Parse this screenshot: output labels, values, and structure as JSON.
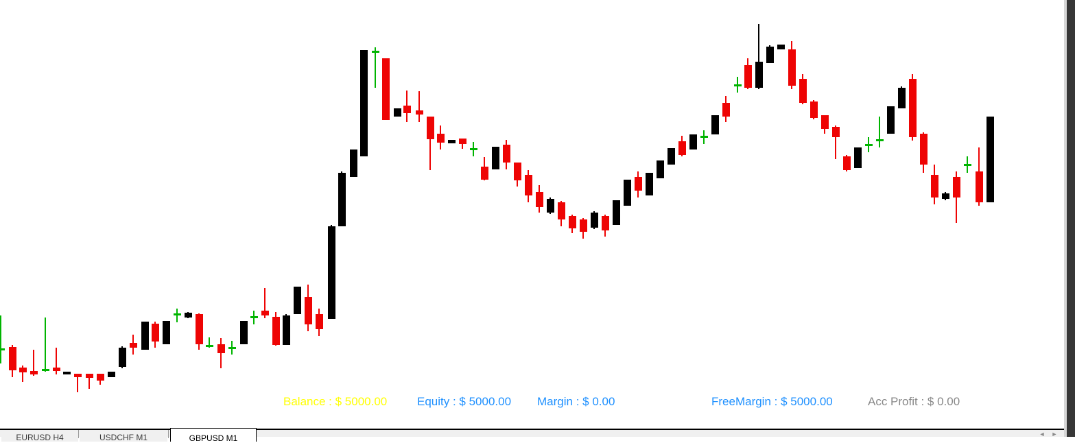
{
  "colors": {
    "top_bar": "#000000",
    "right_edge_strip": "#373737",
    "chart_background": "#ffffff"
  },
  "status_bar": {
    "sep": " : ",
    "items": [
      {
        "label": "Balance",
        "value": "$ 5000.00",
        "color": "#ffff00"
      },
      {
        "label": "Equity",
        "value": "$ 5000.00",
        "color": "#1e90ff"
      },
      {
        "label": "Margin",
        "value": "$ 0.00",
        "color": "#1e90ff"
      },
      {
        "label": "FreeMargin",
        "value": "$ 5000.00",
        "color": "#1e90ff"
      },
      {
        "label": "Acc Profit",
        "value": "$ 0.00",
        "color": "#888888"
      }
    ]
  },
  "tabs": {
    "items": [
      {
        "label": "EURUSD H4",
        "active": false
      },
      {
        "label": "USDCHF M1",
        "active": false
      },
      {
        "label": "GBPUSD M1",
        "active": true
      }
    ],
    "scroll_left_icon": "◄",
    "scroll_right_icon": "►"
  },
  "chart_data": {
    "type": "candlestick",
    "title": "",
    "xlabel": "",
    "ylabel": "",
    "x_axis_visible": false,
    "y_axis_visible": false,
    "grid": false,
    "legend": "none",
    "note": "MT4-style fullscreen candlestick chart; no price/time axis labels are rendered in the screenshot, so candle values are given in screen pixel coordinates (y grows downward).",
    "colors": {
      "bullish": "#000000",
      "bearish": "#ee0404",
      "doji": "#00b400"
    },
    "candle_fields": [
      "x_center_px",
      "wick_top_px",
      "body_top_px",
      "body_bottom_px",
      "wick_bottom_px",
      "direction(b=bull-black, r=bear-red, g=doji-green-cross)"
    ],
    "candles": [
      [
        1,
        460,
        508,
        511,
        530,
        "g"
      ],
      [
        18,
        503,
        506,
        540,
        550,
        "r"
      ],
      [
        33,
        533,
        536,
        543,
        557,
        "r"
      ],
      [
        49,
        510,
        541,
        546,
        548,
        "r"
      ],
      [
        66,
        463,
        538,
        541,
        542,
        "g"
      ],
      [
        82,
        507,
        536,
        541,
        546,
        "r"
      ],
      [
        97,
        542,
        542,
        546,
        546,
        "b"
      ],
      [
        113,
        545,
        545,
        550,
        572,
        "r"
      ],
      [
        130,
        545,
        545,
        551,
        567,
        "r"
      ],
      [
        146,
        545,
        545,
        555,
        561,
        "r"
      ],
      [
        162,
        542,
        542,
        550,
        550,
        "b"
      ],
      [
        178,
        505,
        507,
        535,
        537,
        "b"
      ],
      [
        194,
        488,
        500,
        507,
        517,
        "r"
      ],
      [
        211,
        469,
        469,
        510,
        510,
        "b"
      ],
      [
        226,
        469,
        472,
        498,
        507,
        "r"
      ],
      [
        242,
        468,
        468,
        502,
        502,
        "b"
      ],
      [
        258,
        450,
        457,
        460,
        470,
        "g"
      ],
      [
        274,
        455,
        456,
        463,
        464,
        "b"
      ],
      [
        290,
        457,
        458,
        502,
        510,
        "r"
      ],
      [
        305,
        492,
        503,
        506,
        507,
        "g"
      ],
      [
        322,
        493,
        502,
        515,
        537,
        "r"
      ],
      [
        338,
        497,
        506,
        509,
        517,
        "g"
      ],
      [
        355,
        468,
        468,
        502,
        502,
        "b"
      ],
      [
        370,
        453,
        461,
        464,
        473,
        "g"
      ],
      [
        386,
        420,
        453,
        460,
        464,
        "r"
      ],
      [
        402,
        455,
        462,
        503,
        504,
        "r"
      ],
      [
        417,
        458,
        460,
        503,
        503,
        "b"
      ],
      [
        433,
        418,
        418,
        458,
        458,
        "b"
      ],
      [
        449,
        415,
        433,
        473,
        483,
        "r"
      ],
      [
        465,
        450,
        458,
        480,
        490,
        "r"
      ],
      [
        483,
        328,
        330,
        465,
        465,
        "b"
      ],
      [
        498,
        250,
        252,
        330,
        330,
        "b"
      ],
      [
        515,
        218,
        218,
        258,
        258,
        "b"
      ],
      [
        530,
        73,
        73,
        228,
        228,
        "b"
      ],
      [
        547,
        69,
        74,
        77,
        128,
        "g"
      ],
      [
        562,
        85,
        85,
        175,
        175,
        "r"
      ],
      [
        579,
        158,
        158,
        170,
        170,
        "b"
      ],
      [
        593,
        132,
        154,
        165,
        178,
        "r"
      ],
      [
        611,
        133,
        161,
        167,
        178,
        "r"
      ],
      [
        627,
        170,
        170,
        203,
        248,
        "r"
      ],
      [
        642,
        183,
        195,
        208,
        218,
        "r"
      ],
      [
        658,
        204,
        204,
        209,
        209,
        "b"
      ],
      [
        674,
        202,
        202,
        210,
        217,
        "r"
      ],
      [
        690,
        207,
        216,
        219,
        228,
        "g"
      ],
      [
        706,
        229,
        243,
        262,
        263,
        "r"
      ],
      [
        722,
        214,
        214,
        247,
        247,
        "b"
      ],
      [
        738,
        204,
        211,
        237,
        247,
        "r"
      ],
      [
        754,
        237,
        237,
        263,
        272,
        "r"
      ],
      [
        770,
        248,
        255,
        285,
        295,
        "r"
      ],
      [
        786,
        270,
        280,
        302,
        310,
        "r"
      ],
      [
        802,
        288,
        290,
        310,
        312,
        "b"
      ],
      [
        818,
        293,
        295,
        320,
        330,
        "r"
      ],
      [
        834,
        313,
        315,
        333,
        340,
        "r"
      ],
      [
        850,
        318,
        320,
        338,
        348,
        "r"
      ],
      [
        866,
        308,
        310,
        332,
        334,
        "b"
      ],
      [
        882,
        313,
        315,
        336,
        345,
        "r"
      ],
      [
        898,
        292,
        292,
        328,
        328,
        "b"
      ],
      [
        914,
        262,
        262,
        300,
        300,
        "b"
      ],
      [
        930,
        250,
        258,
        278,
        288,
        "r"
      ],
      [
        946,
        252,
        252,
        285,
        285,
        "b"
      ],
      [
        962,
        234,
        234,
        260,
        260,
        "b"
      ],
      [
        978,
        216,
        216,
        240,
        240,
        "b"
      ],
      [
        994,
        198,
        206,
        226,
        228,
        "r"
      ],
      [
        1010,
        196,
        196,
        218,
        218,
        "b"
      ],
      [
        1026,
        190,
        198,
        201,
        210,
        "g"
      ],
      [
        1042,
        168,
        168,
        196,
        196,
        "b"
      ],
      [
        1058,
        140,
        150,
        170,
        178,
        "r"
      ],
      [
        1075,
        112,
        123,
        126,
        135,
        "g"
      ],
      [
        1090,
        85,
        95,
        128,
        130,
        "r"
      ],
      [
        1106,
        35,
        90,
        128,
        130,
        "b"
      ],
      [
        1122,
        66,
        68,
        92,
        92,
        "b"
      ],
      [
        1138,
        65,
        65,
        72,
        72,
        "b"
      ],
      [
        1154,
        60,
        72,
        125,
        130,
        "r"
      ],
      [
        1170,
        108,
        115,
        150,
        152,
        "r"
      ],
      [
        1186,
        146,
        148,
        172,
        174,
        "r"
      ],
      [
        1202,
        168,
        168,
        188,
        195,
        "r"
      ],
      [
        1218,
        183,
        185,
        200,
        232,
        "r"
      ],
      [
        1234,
        226,
        228,
        248,
        250,
        "r"
      ],
      [
        1250,
        215,
        215,
        245,
        245,
        "b"
      ],
      [
        1266,
        200,
        210,
        213,
        222,
        "g"
      ],
      [
        1282,
        170,
        203,
        206,
        215,
        "g"
      ],
      [
        1298,
        155,
        155,
        195,
        195,
        "b"
      ],
      [
        1314,
        126,
        128,
        158,
        158,
        "b"
      ],
      [
        1330,
        108,
        115,
        200,
        205,
        "r"
      ],
      [
        1346,
        193,
        195,
        240,
        252,
        "r"
      ],
      [
        1362,
        240,
        255,
        288,
        298,
        "r"
      ],
      [
        1378,
        280,
        282,
        290,
        292,
        "b"
      ],
      [
        1394,
        250,
        258,
        288,
        325,
        "r"
      ],
      [
        1410,
        228,
        239,
        242,
        252,
        "g"
      ],
      [
        1427,
        215,
        250,
        295,
        300,
        "r"
      ],
      [
        1443,
        170,
        170,
        295,
        295,
        "b"
      ]
    ]
  }
}
